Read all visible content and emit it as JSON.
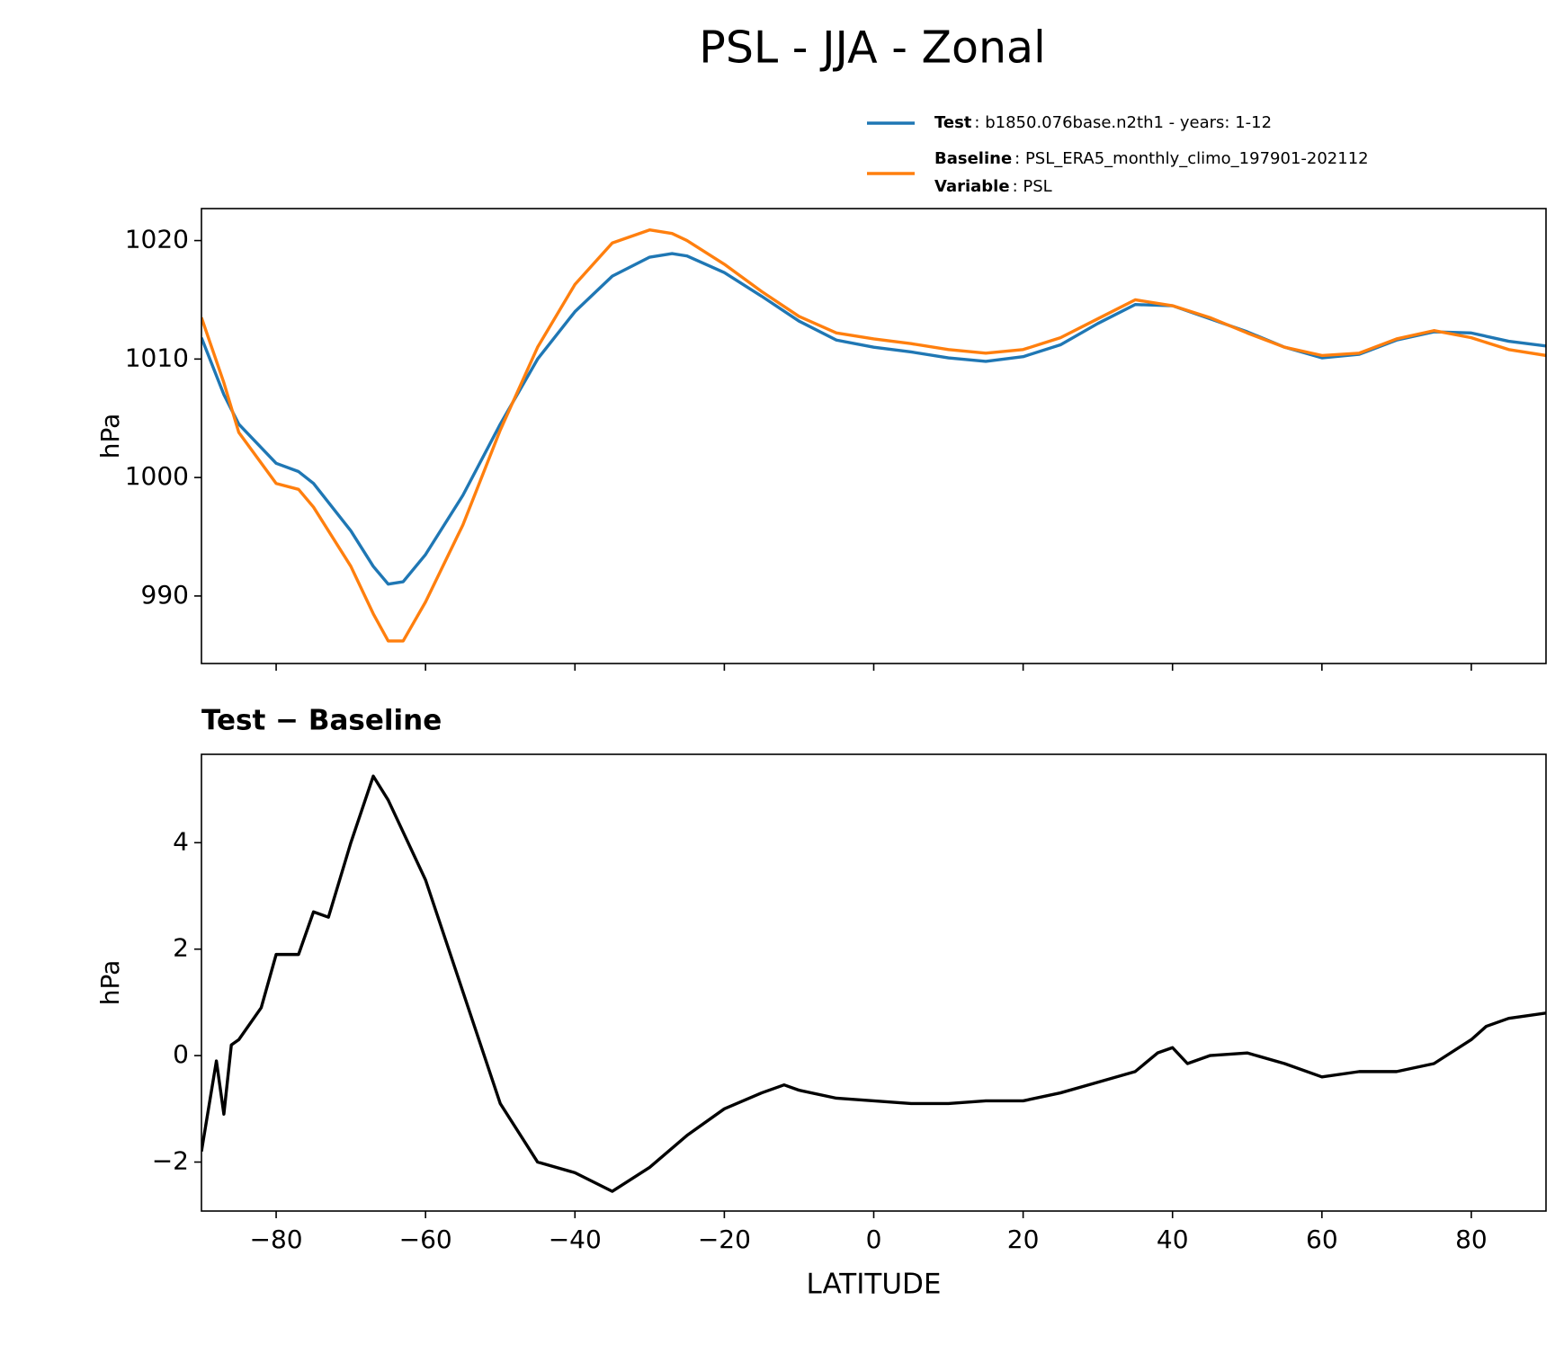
{
  "title": "PSL - JJA - Zonal",
  "chart_data": [
    {
      "type": "line",
      "ylabel": "hPa",
      "x": [
        -90,
        -87,
        -85,
        -80,
        -77,
        -75,
        -70,
        -67,
        -65,
        -63,
        -60,
        -55,
        -50,
        -45,
        -40,
        -35,
        -30,
        -27,
        -25,
        -20,
        -15,
        -10,
        -5,
        0,
        5,
        10,
        15,
        20,
        25,
        30,
        35,
        40,
        45,
        50,
        55,
        60,
        65,
        70,
        75,
        80,
        85,
        90
      ],
      "series": [
        {
          "name": "Test",
          "description": ": b1850.076base.n2th1 - years: 1-12",
          "color": "#1f77b4",
          "values": [
            1011.8,
            1007,
            1004.5,
            1001.2,
            1000.5,
            999.5,
            995.5,
            992.5,
            991,
            991.2,
            993.5,
            998.5,
            1004.5,
            1010,
            1014,
            1017,
            1018.6,
            1018.9,
            1018.7,
            1017.3,
            1015.3,
            1013.2,
            1011.6,
            1011,
            1010.6,
            1010.1,
            1009.8,
            1010.2,
            1011.2,
            1013,
            1014.6,
            1014.5,
            1013.4,
            1012.3,
            1011,
            1010.1,
            1010.4,
            1011.6,
            1012.3,
            1012.2,
            1011.5,
            1011.1
          ]
        },
        {
          "name": "Baseline",
          "description": ": PSL_ERA5_monthly_climo_197901-202112",
          "color": "#ff7f0e",
          "values": [
            1013.5,
            1008,
            1003.8,
            999.5,
            999,
            997.5,
            992.5,
            988.5,
            986.2,
            986.2,
            989.5,
            996,
            1004,
            1011,
            1016.3,
            1019.8,
            1020.9,
            1020.6,
            1020,
            1018,
            1015.7,
            1013.6,
            1012.2,
            1011.7,
            1011.3,
            1010.8,
            1010.5,
            1010.8,
            1011.8,
            1013.4,
            1015,
            1014.5,
            1013.5,
            1012.2,
            1011,
            1010.3,
            1010.5,
            1011.7,
            1012.4,
            1011.8,
            1010.8,
            1010.3
          ]
        }
      ],
      "legend_extra": {
        "name": "Variable",
        "description": ": PSL"
      },
      "xlim": [
        -90,
        90
      ],
      "xticks": [
        -80,
        -60,
        -40,
        -20,
        0,
        20,
        40,
        60,
        80
      ],
      "ylim": [
        984.3,
        1022.7
      ],
      "yticks": [
        990,
        1000,
        1010,
        1020
      ]
    },
    {
      "type": "line",
      "title": "Test − Baseline",
      "xlabel": "LATITUDE",
      "ylabel": "hPa",
      "x": [
        -90,
        -88,
        -87,
        -86,
        -85,
        -82,
        -80,
        -77,
        -75,
        -73,
        -70,
        -67,
        -65,
        -60,
        -55,
        -50,
        -45,
        -40,
        -35,
        -30,
        -25,
        -20,
        -15,
        -12,
        -10,
        -5,
        0,
        5,
        10,
        15,
        20,
        25,
        30,
        35,
        38,
        40,
        42,
        45,
        50,
        55,
        60,
        65,
        70,
        75,
        80,
        82,
        85,
        90
      ],
      "series": [
        {
          "name": "Test − Baseline",
          "color": "#000000",
          "values": [
            -1.8,
            -0.1,
            -1.1,
            0.2,
            0.3,
            0.9,
            1.9,
            1.9,
            2.7,
            2.6,
            4.0,
            5.25,
            4.8,
            3.3,
            1.2,
            -0.9,
            -2.0,
            -2.2,
            -2.55,
            -2.1,
            -1.5,
            -1.0,
            -0.7,
            -0.55,
            -0.65,
            -0.8,
            -0.85,
            -0.9,
            -0.9,
            -0.85,
            -0.85,
            -0.7,
            -0.5,
            -0.3,
            0.05,
            0.15,
            -0.15,
            0,
            0.05,
            -0.15,
            -0.4,
            -0.3,
            -0.3,
            -0.15,
            0.3,
            0.55,
            0.7,
            0.8
          ]
        }
      ],
      "xlim": [
        -90,
        90
      ],
      "xticks": [
        {
          "value": -80,
          "label": "−80"
        },
        {
          "value": -60,
          "label": "−60"
        },
        {
          "value": -40,
          "label": "−40"
        },
        {
          "value": -20,
          "label": "−20"
        },
        0,
        20,
        40,
        60,
        80
      ],
      "ylim": [
        -2.92,
        5.66
      ],
      "yticks": [
        {
          "value": -2,
          "label": "−2"
        },
        0,
        2,
        4
      ]
    }
  ]
}
